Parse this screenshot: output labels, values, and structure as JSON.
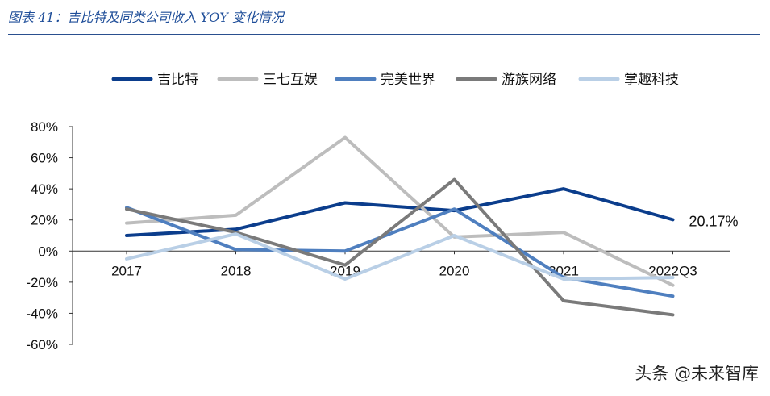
{
  "header": {
    "figure_title": "图表 41：吉比特及同类公司收入 YOY 变化情况"
  },
  "watermark": "头条 @未来智库",
  "chart_data": {
    "type": "line",
    "categories": [
      "2017",
      "2018",
      "2019",
      "2020",
      "2021",
      "2022Q3"
    ],
    "ylim": [
      -60,
      80
    ],
    "yticks": [
      80,
      60,
      40,
      20,
      0,
      -20,
      -40,
      -60
    ],
    "ytick_labels": [
      "80%",
      "60%",
      "40%",
      "20%",
      "0%",
      "-20%",
      "-40%",
      "-60%"
    ],
    "legend_position": "top",
    "grid": false,
    "series": [
      {
        "name": "吉比特",
        "color": "#0b3d8c",
        "values": [
          10,
          14,
          31,
          26,
          40,
          20.17
        ]
      },
      {
        "name": "三七互娱",
        "color": "#bdbdbd",
        "values": [
          18,
          23,
          73,
          9,
          12,
          -22
        ]
      },
      {
        "name": "完美世界",
        "color": "#4f7fbf",
        "values": [
          28,
          1,
          0,
          27,
          -17,
          -29
        ]
      },
      {
        "name": "游族网络",
        "color": "#7a7a7a",
        "values": [
          27,
          12,
          -9,
          46,
          -32,
          -41
        ]
      },
      {
        "name": "掌趣科技",
        "color": "#b9cfe6",
        "values": [
          -5,
          11,
          -18,
          10,
          -18,
          -17
        ]
      }
    ],
    "annotations": [
      {
        "series": "吉比特",
        "category": "2022Q3",
        "text": "20.17%"
      }
    ]
  }
}
